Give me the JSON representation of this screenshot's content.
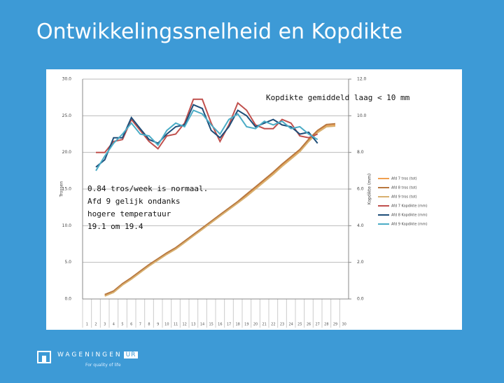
{
  "slide": {
    "title": "Ontwikkelingssnelheid en Kopdikte",
    "logo": "WAGENINGEN",
    "logo_badge": "UR",
    "tagline": "For quality of life"
  },
  "chart_data": {
    "type": "line",
    "ylabel": "Trossen",
    "y2label": "Kopdikte (mm)",
    "categories": [
      "1",
      "2",
      "3",
      "4",
      "5",
      "6",
      "7",
      "8",
      "9",
      "10",
      "11",
      "12",
      "13",
      "14",
      "15",
      "16",
      "17",
      "18",
      "19",
      "20",
      "21",
      "22",
      "23",
      "24",
      "25",
      "26",
      "27",
      "28",
      "29",
      "30"
    ],
    "ylim": [
      0,
      30
    ],
    "yticks": [
      {
        "value": 0,
        "label": "0.0"
      },
      {
        "value": 5,
        "label": "5.0"
      },
      {
        "value": 10,
        "label": "10.0"
      },
      {
        "value": 15,
        "label": "15.0"
      },
      {
        "value": 20,
        "label": "20.0"
      },
      {
        "value": 25,
        "label": "25.0"
      },
      {
        "value": 30,
        "label": "30.0"
      }
    ],
    "y2lim": [
      0,
      12
    ],
    "y2ticks": [
      {
        "value": 0,
        "label": "0.0"
      },
      {
        "value": 2,
        "label": "2.0"
      },
      {
        "value": 4,
        "label": "4.0"
      },
      {
        "value": 6,
        "label": "6.0"
      },
      {
        "value": 8,
        "label": "8.0"
      },
      {
        "value": 10,
        "label": "10.0"
      },
      {
        "value": 12,
        "label": "12.0"
      }
    ],
    "grid": true,
    "series": [
      {
        "name": "Afd 7 tros (tot)",
        "color": "#f0a050",
        "values": [
          null,
          null,
          0.5,
          1.0,
          2.0,
          2.8,
          3.7,
          4.6,
          5.4,
          6.2,
          6.9,
          7.8,
          8.7,
          9.6,
          10.5,
          11.4,
          12.3,
          13.2,
          14.1,
          15.1,
          16.1,
          17.1,
          18.2,
          19.2,
          20.2,
          21.6,
          22.8,
          23.6,
          23.7,
          null
        ]
      },
      {
        "name": "Afd 8 tros (tot)",
        "color": "#b87840",
        "values": [
          null,
          null,
          0.6,
          1.1,
          2.1,
          2.9,
          3.8,
          4.7,
          5.5,
          6.3,
          7.0,
          7.9,
          8.8,
          9.7,
          10.6,
          11.5,
          12.4,
          13.3,
          14.3,
          15.3,
          16.3,
          17.3,
          18.4,
          19.4,
          20.4,
          21.8,
          23.0,
          23.8,
          23.9,
          null
        ]
      },
      {
        "name": "Afd 9 tros (tot)",
        "color": "#d8b070",
        "values": [
          null,
          null,
          0.4,
          0.9,
          1.9,
          2.7,
          3.6,
          4.5,
          5.3,
          6.1,
          6.8,
          7.7,
          8.6,
          9.5,
          10.4,
          11.3,
          12.2,
          13.1,
          14.0,
          15.0,
          16.0,
          17.0,
          18.1,
          19.1,
          20.1,
          21.5,
          22.7,
          23.5,
          23.6,
          null
        ]
      },
      {
        "name": "Afd 7 Kopdikte (mm)",
        "color": "#c0504d",
        "axis": "y2",
        "values": [
          null,
          8.0,
          8.0,
          8.6,
          8.7,
          9.8,
          9.2,
          8.6,
          8.2,
          8.9,
          9.0,
          9.6,
          10.9,
          10.9,
          9.6,
          8.6,
          9.5,
          10.7,
          10.3,
          9.5,
          9.3,
          9.3,
          9.8,
          9.6,
          8.9,
          8.8,
          9.0,
          null,
          null,
          null
        ]
      },
      {
        "name": "Afd 8 Kopdikte (mm)",
        "color": "#1f4e79",
        "axis": "y2",
        "values": [
          null,
          7.2,
          7.6,
          8.8,
          8.8,
          9.9,
          9.3,
          8.7,
          8.5,
          9.0,
          9.4,
          9.5,
          10.6,
          10.4,
          9.2,
          8.8,
          9.4,
          10.3,
          10.0,
          9.4,
          9.6,
          9.8,
          9.5,
          9.4,
          9.0,
          9.1,
          8.5,
          null,
          null,
          null
        ]
      },
      {
        "name": "Afd 9 Kopdikte (mm)",
        "color": "#4bacc6",
        "axis": "y2",
        "values": [
          null,
          7.0,
          7.8,
          8.5,
          9.0,
          9.6,
          9.0,
          8.9,
          8.4,
          9.2,
          9.6,
          9.4,
          10.3,
          10.1,
          9.5,
          9.0,
          9.8,
          10.1,
          9.4,
          9.3,
          9.7,
          9.5,
          9.7,
          9.3,
          9.4,
          9.0,
          8.7,
          null,
          null,
          null
        ]
      }
    ],
    "annotations": [
      "Kopdikte gemiddeld laag < 10 mm",
      "0.84 tros/week is normaal.",
      "Afd 9 gelijk ondanks",
      "hogere temperatuur",
      "19.1 om 19.4"
    ]
  }
}
